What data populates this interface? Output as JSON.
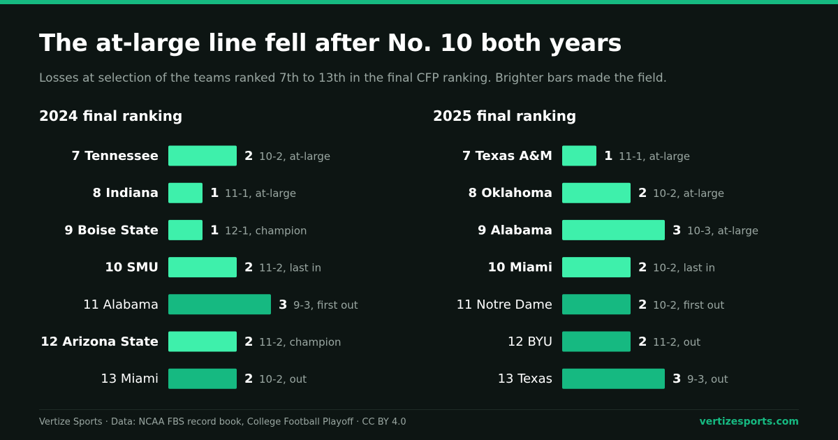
{
  "header": {
    "title": "The at-large line fell after No. 10 both years",
    "subtitle": "Losses at selection of the teams ranked 7th to 13th in the final CFP ranking. Brighter bars made the field."
  },
  "colors": {
    "accent": "#16b981",
    "made_field": "#3ef0ab",
    "missed_field": "#16b981",
    "background": "#0d1513",
    "muted_text": "#9aa7a2"
  },
  "chart_data": [
    {
      "type": "bar",
      "orientation": "horizontal",
      "title": "2024 final ranking",
      "xlim": [
        0,
        3
      ],
      "categories": [
        "7 Tennessee",
        "8 Indiana",
        "9 Boise State",
        "10 SMU",
        "11 Alabama",
        "12 Arizona State",
        "13 Miami"
      ],
      "values": [
        2,
        1,
        1,
        2,
        3,
        2,
        2
      ],
      "notes": [
        "10-2, at-large",
        "11-1, at-large",
        "12-1, champion",
        "11-2, last in",
        "9-3, first out",
        "11-2, champion",
        "10-2, out"
      ],
      "made_field": [
        true,
        true,
        true,
        true,
        false,
        true,
        false
      ]
    },
    {
      "type": "bar",
      "orientation": "horizontal",
      "title": "2025 final ranking",
      "xlim": [
        0,
        3
      ],
      "categories": [
        "7 Texas A&M",
        "8 Oklahoma",
        "9 Alabama",
        "10 Miami",
        "11 Notre Dame",
        "12 BYU",
        "13 Texas"
      ],
      "values": [
        1,
        2,
        3,
        2,
        2,
        2,
        3
      ],
      "notes": [
        "11-1, at-large",
        "10-2, at-large",
        "10-3, at-large",
        "10-2, last in",
        "10-2, first out",
        "11-2, out",
        "9-3, out"
      ],
      "made_field": [
        true,
        true,
        true,
        true,
        false,
        false,
        false
      ]
    }
  ],
  "footer": {
    "source": "Vertize Sports · Data: NCAA FBS record book, College Football Playoff · CC BY 4.0",
    "site": "vertizesports.com"
  }
}
